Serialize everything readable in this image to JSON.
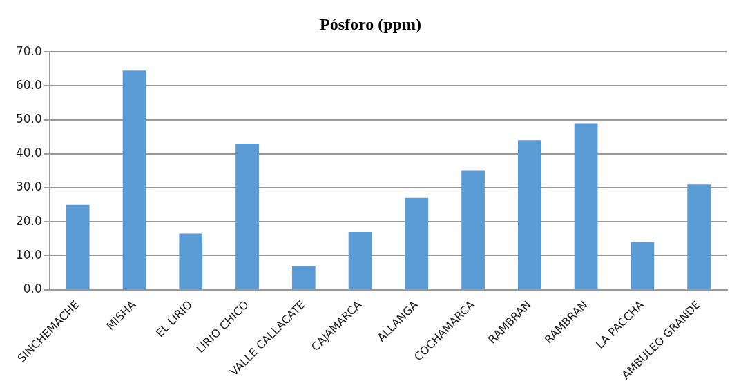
{
  "chart_data": {
    "type": "bar",
    "title": "Pósforo (ppm)",
    "categories": [
      "SINCHEMACHE",
      "MISHA",
      "EL LIRIO",
      "LIRIO CHICO",
      "VALLE CALLACATE",
      "CAJAMARCA",
      "ALLANGA",
      "COCHAMARCA",
      "RAMBRAN",
      "RAMBRAN",
      "LA PACCHA",
      "AMBULEO GRANDE"
    ],
    "values": [
      25,
      64.5,
      16.5,
      43,
      7,
      17,
      27,
      35,
      44,
      49,
      14,
      31
    ],
    "color": "#5b9bd5",
    "ylim": [
      0,
      70
    ],
    "yticks": [
      {
        "value": 0,
        "label": "0.0"
      },
      {
        "value": 10,
        "label": "10.0"
      },
      {
        "value": 20,
        "label": "20.0"
      },
      {
        "value": 30,
        "label": "30.0"
      },
      {
        "value": 40,
        "label": "40.0"
      },
      {
        "value": 50,
        "label": "50.0"
      },
      {
        "value": 60,
        "label": "60.0"
      },
      {
        "value": 70,
        "label": "70.0"
      }
    ],
    "grid": "y",
    "legend": false
  }
}
